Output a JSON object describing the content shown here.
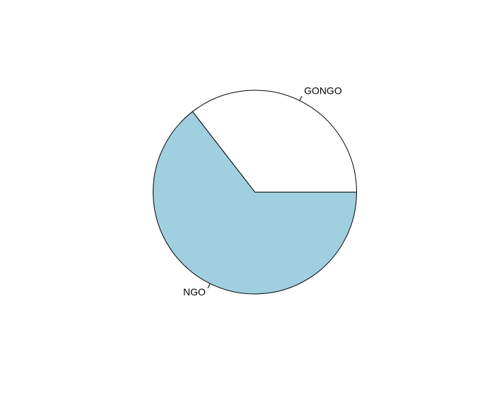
{
  "chart_data": {
    "type": "pie",
    "title": "",
    "categories": [
      "GONGO",
      "NGO"
    ],
    "values": [
      35.5,
      64.5
    ],
    "colors": [
      "#ffffff",
      "#a0cfe0"
    ],
    "border_color": "#000000",
    "start_angle_deg": 0,
    "direction": "counterclockwise",
    "legend": "none"
  }
}
